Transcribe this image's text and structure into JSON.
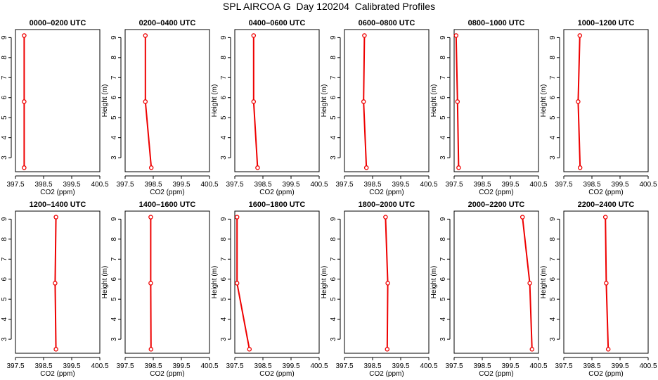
{
  "title": "SPL AIRCOA G  Day 120204  Calibrated Profiles",
  "colors": {
    "line": "#ee0000",
    "axis": "#000000",
    "background": "#ffffff"
  },
  "chart_data": [
    {
      "type": "line",
      "title": "0000–0200 UTC",
      "xlabel": "CO2 (ppm)",
      "ylabel": "Height (m)",
      "xlim": [
        397.5,
        400.5
      ],
      "ylim": [
        2.3,
        9.4
      ],
      "xticks": [
        "397.5",
        "398.5",
        "399.5",
        "400.5"
      ],
      "xtick_values": [
        397.5,
        398.5,
        399.5,
        400.5
      ],
      "yticks": [
        "3",
        "4",
        "5",
        "6",
        "7",
        "8",
        "9"
      ],
      "ytick_values": [
        3,
        4,
        5,
        6,
        7,
        8,
        9
      ],
      "grid": false,
      "series": [
        {
          "x": [
            397.81,
            397.81,
            397.81
          ],
          "y": [
            2.5,
            5.8,
            9.1
          ]
        }
      ]
    },
    {
      "type": "line",
      "title": "0200–0400 UTC",
      "xlabel": "CO2 (ppm)",
      "ylabel": "Height (m)",
      "xlim": [
        397.5,
        400.5
      ],
      "ylim": [
        2.3,
        9.4
      ],
      "xticks": [
        "397.5",
        "398.5",
        "399.5",
        "400.5"
      ],
      "xtick_values": [
        397.5,
        398.5,
        399.5,
        400.5
      ],
      "yticks": [
        "3",
        "4",
        "5",
        "6",
        "7",
        "8",
        "9"
      ],
      "ytick_values": [
        3,
        4,
        5,
        6,
        7,
        8,
        9
      ],
      "grid": false,
      "series": [
        {
          "x": [
            398.43,
            398.22,
            398.22
          ],
          "y": [
            2.5,
            5.8,
            9.1
          ]
        }
      ]
    },
    {
      "type": "line",
      "title": "0400–0600 UTC",
      "xlabel": "CO2 (ppm)",
      "ylabel": "Height (m)",
      "xlim": [
        397.5,
        400.5
      ],
      "ylim": [
        2.3,
        9.4
      ],
      "xticks": [
        "397.5",
        "398.5",
        "399.5",
        "400.5"
      ],
      "xtick_values": [
        397.5,
        398.5,
        399.5,
        400.5
      ],
      "yticks": [
        "3",
        "4",
        "5",
        "6",
        "7",
        "8",
        "9"
      ],
      "ytick_values": [
        3,
        4,
        5,
        6,
        7,
        8,
        9
      ],
      "grid": false,
      "series": [
        {
          "x": [
            398.31,
            398.17,
            398.17
          ],
          "y": [
            2.5,
            5.8,
            9.1
          ]
        }
      ]
    },
    {
      "type": "line",
      "title": "0600–0800 UTC",
      "xlabel": "CO2 (ppm)",
      "ylabel": "Height (m)",
      "xlim": [
        397.5,
        400.5
      ],
      "ylim": [
        2.3,
        9.4
      ],
      "xticks": [
        "397.5",
        "398.5",
        "399.5",
        "400.5"
      ],
      "xtick_values": [
        397.5,
        398.5,
        399.5,
        400.5
      ],
      "yticks": [
        "3",
        "4",
        "5",
        "6",
        "7",
        "8",
        "9"
      ],
      "ytick_values": [
        3,
        4,
        5,
        6,
        7,
        8,
        9
      ],
      "grid": false,
      "series": [
        {
          "x": [
            398.28,
            398.18,
            398.21
          ],
          "y": [
            2.5,
            5.8,
            9.1
          ]
        }
      ]
    },
    {
      "type": "line",
      "title": "0800–1000 UTC",
      "xlabel": "CO2 (ppm)",
      "ylabel": "Height (m)",
      "xlim": [
        397.5,
        400.5
      ],
      "ylim": [
        2.3,
        9.4
      ],
      "xticks": [
        "397.5",
        "398.5",
        "399.5",
        "400.5"
      ],
      "xtick_values": [
        397.5,
        398.5,
        399.5,
        400.5
      ],
      "yticks": [
        "3",
        "4",
        "5",
        "6",
        "7",
        "8",
        "9"
      ],
      "ytick_values": [
        3,
        4,
        5,
        6,
        7,
        8,
        9
      ],
      "grid": false,
      "series": [
        {
          "x": [
            397.66,
            397.62,
            397.57
          ],
          "y": [
            2.5,
            5.8,
            9.1
          ]
        }
      ]
    },
    {
      "type": "line",
      "title": "1000–1200 UTC",
      "xlabel": "CO2 (ppm)",
      "ylabel": "Height (m)",
      "xlim": [
        397.5,
        400.5
      ],
      "ylim": [
        2.3,
        9.4
      ],
      "xticks": [
        "397.5",
        "398.5",
        "399.5",
        "400.5"
      ],
      "xtick_values": [
        397.5,
        398.5,
        399.5,
        400.5
      ],
      "yticks": [
        "3",
        "4",
        "5",
        "6",
        "7",
        "8",
        "9"
      ],
      "ytick_values": [
        3,
        4,
        5,
        6,
        7,
        8,
        9
      ],
      "grid": false,
      "series": [
        {
          "x": [
            398.08,
            398.01,
            398.07
          ],
          "y": [
            2.5,
            5.8,
            9.1
          ]
        }
      ]
    },
    {
      "type": "line",
      "title": "1200–1400 UTC",
      "xlabel": "CO2 (ppm)",
      "ylabel": "Height (m)",
      "xlim": [
        397.5,
        400.5
      ],
      "ylim": [
        2.3,
        9.4
      ],
      "xticks": [
        "397.5",
        "398.5",
        "399.5",
        "400.5"
      ],
      "xtick_values": [
        397.5,
        398.5,
        399.5,
        400.5
      ],
      "yticks": [
        "3",
        "4",
        "5",
        "6",
        "7",
        "8",
        "9"
      ],
      "ytick_values": [
        3,
        4,
        5,
        6,
        7,
        8,
        9
      ],
      "grid": false,
      "series": [
        {
          "x": [
            398.94,
            398.91,
            398.94
          ],
          "y": [
            2.5,
            5.8,
            9.1
          ]
        }
      ]
    },
    {
      "type": "line",
      "title": "1400–1600 UTC",
      "xlabel": "CO2 (ppm)",
      "ylabel": "Height (m)",
      "xlim": [
        397.5,
        400.5
      ],
      "ylim": [
        2.3,
        9.4
      ],
      "xticks": [
        "397.5",
        "398.5",
        "399.5",
        "400.5"
      ],
      "xtick_values": [
        397.5,
        398.5,
        399.5,
        400.5
      ],
      "yticks": [
        "3",
        "4",
        "5",
        "6",
        "7",
        "8",
        "9"
      ],
      "ytick_values": [
        3,
        4,
        5,
        6,
        7,
        8,
        9
      ],
      "grid": false,
      "series": [
        {
          "x": [
            398.42,
            398.41,
            398.41
          ],
          "y": [
            2.5,
            5.8,
            9.1
          ]
        }
      ]
    },
    {
      "type": "line",
      "title": "1600–1800 UTC",
      "xlabel": "CO2 (ppm)",
      "ylabel": "Height (m)",
      "xlim": [
        397.5,
        400.5
      ],
      "ylim": [
        2.3,
        9.4
      ],
      "xticks": [
        "397.5",
        "398.5",
        "399.5",
        "400.5"
      ],
      "xtick_values": [
        397.5,
        398.5,
        399.5,
        400.5
      ],
      "yticks": [
        "3",
        "4",
        "5",
        "6",
        "7",
        "8",
        "9"
      ],
      "ytick_values": [
        3,
        4,
        5,
        6,
        7,
        8,
        9
      ],
      "grid": false,
      "series": [
        {
          "x": [
            398.02,
            397.58,
            397.58
          ],
          "y": [
            2.5,
            5.8,
            9.1
          ]
        }
      ]
    },
    {
      "type": "line",
      "title": "1800–2000 UTC",
      "xlabel": "CO2 (ppm)",
      "ylabel": "Height (m)",
      "xlim": [
        397.5,
        400.5
      ],
      "ylim": [
        2.3,
        9.4
      ],
      "xticks": [
        "397.5",
        "398.5",
        "399.5",
        "400.5"
      ],
      "xtick_values": [
        397.5,
        398.5,
        399.5,
        400.5
      ],
      "yticks": [
        "3",
        "4",
        "5",
        "6",
        "7",
        "8",
        "9"
      ],
      "ytick_values": [
        3,
        4,
        5,
        6,
        7,
        8,
        9
      ],
      "grid": false,
      "series": [
        {
          "x": [
            399.02,
            399.04,
            398.96
          ],
          "y": [
            2.5,
            5.8,
            9.1
          ]
        }
      ]
    },
    {
      "type": "line",
      "title": "2000–2200 UTC",
      "xlabel": "CO2 (ppm)",
      "ylabel": "Height (m)",
      "xlim": [
        397.5,
        400.5
      ],
      "ylim": [
        2.3,
        9.4
      ],
      "xticks": [
        "397.5",
        "398.5",
        "399.5",
        "400.5"
      ],
      "xtick_values": [
        397.5,
        398.5,
        399.5,
        400.5
      ],
      "yticks": [
        "3",
        "4",
        "5",
        "6",
        "7",
        "8",
        "9"
      ],
      "ytick_values": [
        3,
        4,
        5,
        6,
        7,
        8,
        9
      ],
      "grid": false,
      "series": [
        {
          "x": [
            400.27,
            400.19,
            399.93
          ],
          "y": [
            2.5,
            5.8,
            9.1
          ]
        }
      ]
    },
    {
      "type": "line",
      "title": "2200–2400 UTC",
      "xlabel": "CO2 (ppm)",
      "ylabel": "Height (m)",
      "xlim": [
        397.5,
        400.5
      ],
      "ylim": [
        2.3,
        9.4
      ],
      "xticks": [
        "397.5",
        "398.5",
        "399.5",
        "400.5"
      ],
      "xtick_values": [
        397.5,
        398.5,
        399.5,
        400.5
      ],
      "yticks": [
        "3",
        "4",
        "5",
        "6",
        "7",
        "8",
        "9"
      ],
      "ytick_values": [
        3,
        4,
        5,
        6,
        7,
        8,
        9
      ],
      "grid": false,
      "series": [
        {
          "x": [
            399.08,
            399.01,
            398.98
          ],
          "y": [
            2.5,
            5.8,
            9.1
          ]
        }
      ]
    }
  ]
}
